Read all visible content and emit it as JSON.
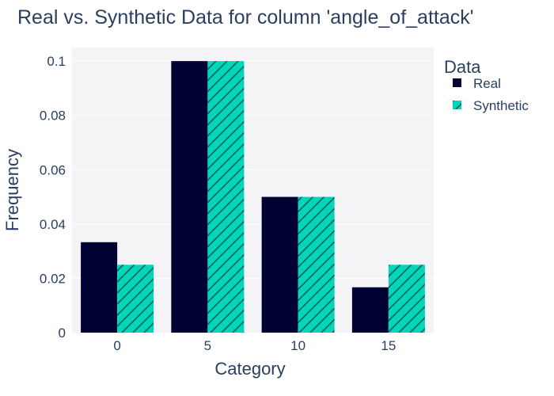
{
  "chart_data": {
    "type": "bar",
    "title": "Real vs. Synthetic Data for column 'angle_of_attack'",
    "xlabel": "Category",
    "ylabel": "Frequency",
    "categories": [
      "0",
      "5",
      "10",
      "15"
    ],
    "series": [
      {
        "name": "Real",
        "values": [
          0.0333,
          0.1,
          0.05,
          0.0167
        ],
        "color": "#000033",
        "pattern": "solid"
      },
      {
        "name": "Synthetic",
        "values": [
          0.025,
          0.1,
          0.05,
          0.025
        ],
        "color": "#00d6b9",
        "pattern": "diagonal-hatch"
      }
    ],
    "ylim": [
      0,
      0.105
    ],
    "yticks": [
      0,
      0.02,
      0.04,
      0.06,
      0.08,
      0.1
    ],
    "ytick_labels": [
      "0",
      "0.02",
      "0.04",
      "0.06",
      "0.08",
      "0.1"
    ],
    "legend": {
      "title": "Data",
      "position": "top-right"
    },
    "grid": true,
    "plot_background": "#f4f4f7"
  }
}
